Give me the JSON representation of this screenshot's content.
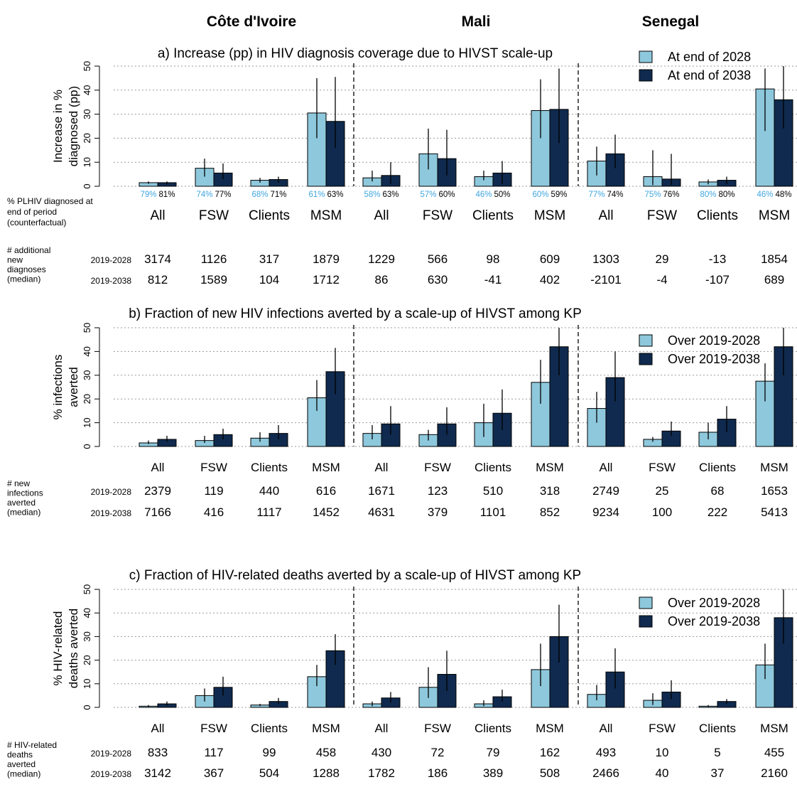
{
  "countries": [
    "Côte d'Ivoire",
    "Mali",
    "Senegal"
  ],
  "groups": [
    "All",
    "FSW",
    "Clients",
    "MSM"
  ],
  "colors": {
    "light": "#8ec8dc",
    "dark": "#0f2a4e",
    "pct_label": "#3fa6e0",
    "grid": "#9a9a9a"
  },
  "chart_data": [
    {
      "id": "a",
      "type": "bar",
      "title": "a) Increase (pp) in HIV diagnosis coverage due to HIVST scale-up",
      "ylabel": [
        "Increase in %",
        "diagnosed (pp)"
      ],
      "ylim": [
        0,
        50
      ],
      "yticks": [
        0,
        10,
        20,
        30,
        40,
        50
      ],
      "grid": true,
      "legend_placement": "top-right",
      "series": [
        {
          "name": "At end of 2028",
          "values": [
            1.5,
            7.5,
            2.5,
            30.5,
            3.5,
            13.5,
            4.0,
            31.5,
            10.5,
            4.0,
            1.8,
            40.5
          ],
          "lower": [
            1.0,
            4.0,
            1.5,
            20.0,
            2.0,
            7.0,
            2.5,
            20.0,
            4.5,
            0.5,
            0.8,
            23.0
          ],
          "upper": [
            2.0,
            11.5,
            3.5,
            45.0,
            6.5,
            24.0,
            6.5,
            44.5,
            16.5,
            15.0,
            2.8,
            49.0
          ]
        },
        {
          "name": "At end of 2038",
          "values": [
            1.5,
            5.5,
            2.8,
            27.0,
            4.5,
            11.5,
            5.5,
            32.0,
            13.5,
            3.0,
            2.5,
            36.0
          ],
          "lower": [
            0.8,
            3.0,
            1.5,
            16.0,
            1.0,
            4.5,
            1.0,
            18.0,
            7.5,
            0.5,
            1.0,
            24.0
          ],
          "upper": [
            2.0,
            9.5,
            4.0,
            45.5,
            10.0,
            23.5,
            10.5,
            49.0,
            21.5,
            13.5,
            4.0,
            50.0
          ]
        }
      ],
      "pct_labels": {
        "label": [
          "% PLHIV diagnosed at",
          "end of period",
          "(counterfactual)"
        ],
        "light": [
          "79%",
          "74%",
          "68%",
          "61%",
          "58%",
          "57%",
          "46%",
          "60%",
          "77%",
          "75%",
          "80%",
          "46%"
        ],
        "dark": [
          "81%",
          "77%",
          "71%",
          "63%",
          "63%",
          "60%",
          "50%",
          "59%",
          "74%",
          "76%",
          "80%",
          "48%"
        ]
      },
      "table": {
        "label": [
          "# additional",
          "new",
          "diagnoses",
          "(median)"
        ],
        "rows": [
          {
            "period": "2019-2028",
            "values": [
              "3174",
              "1126",
              "317",
              "1879",
              "1229",
              "566",
              "98",
              "609",
              "1303",
              "29",
              "-13",
              "1854"
            ]
          },
          {
            "period": "2019-2038",
            "values": [
              "812",
              "1589",
              "104",
              "1712",
              "86",
              "630",
              "-41",
              "402",
              "-2101",
              "-4",
              "-107",
              "689"
            ]
          }
        ]
      }
    },
    {
      "id": "b",
      "type": "bar",
      "title": "b) Fraction of new HIV infections averted by a scale-up of HIVST among KP",
      "ylabel": [
        "% infections",
        "averted"
      ],
      "ylim": [
        0,
        50
      ],
      "yticks": [
        0,
        10,
        20,
        30,
        40,
        50
      ],
      "grid": true,
      "legend_placement": "top-right",
      "series": [
        {
          "name": "Over 2019-2028",
          "values": [
            1.5,
            2.5,
            3.5,
            20.5,
            5.5,
            5.0,
            10.0,
            27.0,
            16.0,
            3.0,
            6.0,
            27.5
          ],
          "lower": [
            1.0,
            1.5,
            2.0,
            15.0,
            3.0,
            2.5,
            4.0,
            18.0,
            10.0,
            2.0,
            3.0,
            19.0
          ],
          "upper": [
            2.5,
            4.5,
            6.0,
            28.0,
            9.0,
            7.0,
            18.0,
            36.5,
            23.0,
            4.0,
            10.0,
            35.0
          ]
        },
        {
          "name": "Over 2019-2038",
          "values": [
            3.0,
            5.0,
            5.5,
            31.5,
            9.5,
            9.5,
            14.0,
            42.0,
            29.0,
            6.5,
            11.5,
            42.0
          ],
          "lower": [
            2.0,
            3.0,
            3.0,
            22.0,
            5.0,
            5.0,
            7.0,
            30.0,
            19.0,
            4.5,
            6.0,
            30.0
          ],
          "upper": [
            4.5,
            7.5,
            9.0,
            41.5,
            17.0,
            16.5,
            24.0,
            50.0,
            40.0,
            10.5,
            17.0,
            50.0
          ]
        }
      ],
      "table": {
        "label": [
          "# new",
          "infections",
          "averted",
          "(median)"
        ],
        "rows": [
          {
            "period": "2019-2028",
            "values": [
              "2379",
              "119",
              "440",
              "616",
              "1671",
              "123",
              "510",
              "318",
              "2749",
              "25",
              "68",
              "1653"
            ]
          },
          {
            "period": "2019-2038",
            "values": [
              "7166",
              "416",
              "1117",
              "1452",
              "4631",
              "379",
              "1101",
              "852",
              "9234",
              "100",
              "222",
              "5413"
            ]
          }
        ]
      }
    },
    {
      "id": "c",
      "type": "bar",
      "title": "c) Fraction of HIV-related deaths averted by a scale-up of HIVST among KP",
      "ylabel": [
        "% HIV-related",
        "deaths averted"
      ],
      "ylim": [
        0,
        50
      ],
      "yticks": [
        0,
        10,
        20,
        30,
        40,
        50
      ],
      "grid": true,
      "legend_placement": "top-right",
      "series": [
        {
          "name": "Over 2019-2028",
          "values": [
            0.5,
            5.0,
            1.0,
            13.0,
            1.5,
            8.5,
            1.5,
            16.0,
            5.5,
            3.0,
            0.5,
            18.0
          ],
          "lower": [
            0.2,
            2.5,
            0.5,
            9.0,
            0.5,
            4.0,
            0.5,
            9.0,
            3.0,
            1.0,
            0.2,
            12.0
          ],
          "upper": [
            1.0,
            8.0,
            1.5,
            18.0,
            2.5,
            17.0,
            3.0,
            27.0,
            9.5,
            6.0,
            1.0,
            27.0
          ]
        },
        {
          "name": "Over 2019-2038",
          "values": [
            1.5,
            8.5,
            2.5,
            24.0,
            4.0,
            14.0,
            4.5,
            30.0,
            15.0,
            6.5,
            2.5,
            38.0
          ],
          "lower": [
            0.8,
            5.0,
            1.5,
            18.0,
            2.0,
            7.0,
            2.5,
            19.0,
            8.0,
            3.5,
            1.5,
            27.0
          ],
          "upper": [
            2.5,
            13.0,
            4.0,
            31.0,
            6.5,
            24.0,
            7.5,
            43.5,
            25.0,
            11.5,
            3.5,
            50.0
          ]
        }
      ],
      "table": {
        "label": [
          "# HIV-related",
          "deaths",
          "averted",
          "(median)"
        ],
        "rows": [
          {
            "period": "2019-2028",
            "values": [
              "833",
              "117",
              "99",
              "458",
              "430",
              "72",
              "79",
              "162",
              "493",
              "10",
              "5",
              "455"
            ]
          },
          {
            "period": "2019-2038",
            "values": [
              "3142",
              "367",
              "504",
              "1288",
              "1782",
              "186",
              "389",
              "508",
              "2466",
              "40",
              "37",
              "2160"
            ]
          }
        ]
      }
    }
  ]
}
